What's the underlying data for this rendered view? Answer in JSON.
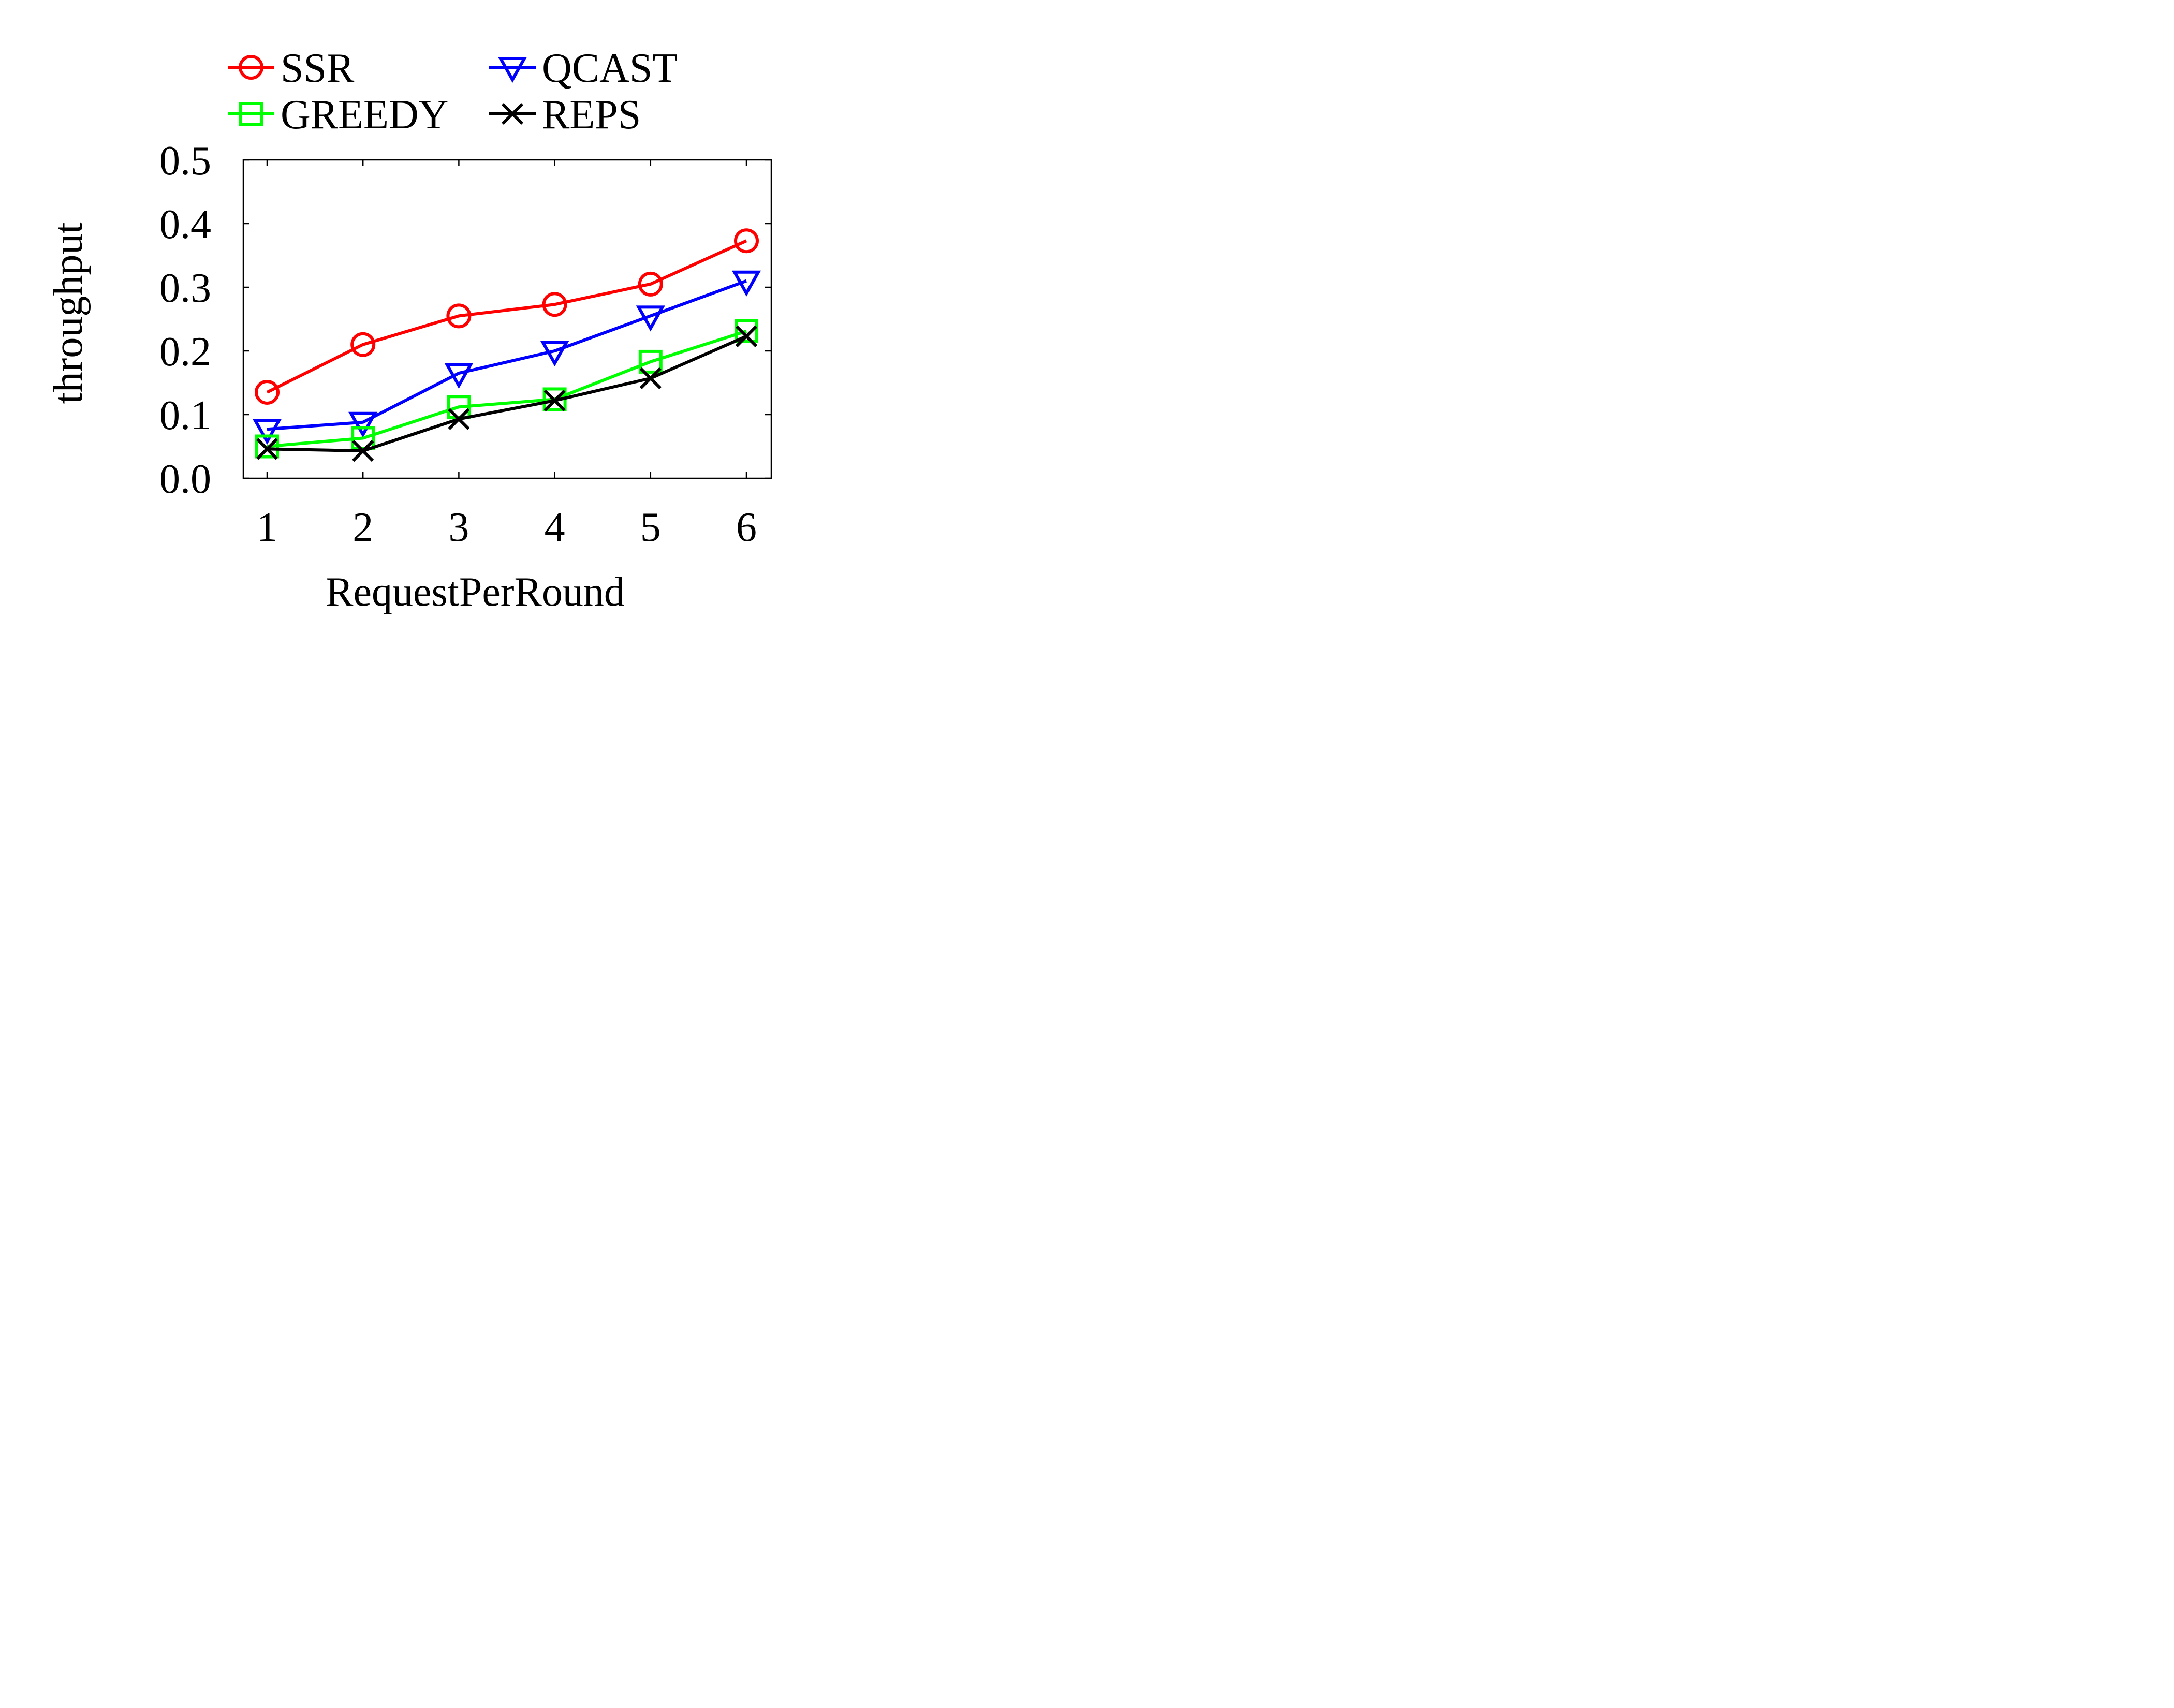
{
  "chart_data": {
    "type": "line",
    "xlabel": "RequestPerRound",
    "ylabel": "throughput",
    "x": [
      1,
      2,
      3,
      4,
      5,
      6
    ],
    "xticks": [
      "1",
      "2",
      "3",
      "4",
      "5",
      "6"
    ],
    "ylim": [
      0.0,
      0.5
    ],
    "yticks": [
      "0.0",
      "0.1",
      "0.2",
      "0.3",
      "0.4",
      "0.5"
    ],
    "grid": false,
    "legend_placement": "top, above plot, two columns",
    "series": [
      {
        "name": "SSR",
        "marker": "circle",
        "color": "#ff0000",
        "values": [
          0.135,
          0.21,
          0.255,
          0.273,
          0.305,
          0.373
        ]
      },
      {
        "name": "QCAST",
        "marker": "triangle-down",
        "color": "#0000ff",
        "values": [
          0.077,
          0.088,
          0.165,
          0.2,
          0.255,
          0.31
        ]
      },
      {
        "name": "GREEDY",
        "marker": "square",
        "color": "#00ff00",
        "values": [
          0.05,
          0.063,
          0.112,
          0.124,
          0.183,
          0.231
        ]
      },
      {
        "name": "REPS",
        "marker": "x",
        "color": "#000000",
        "values": [
          0.046,
          0.043,
          0.093,
          0.122,
          0.157,
          0.223
        ]
      }
    ]
  }
}
